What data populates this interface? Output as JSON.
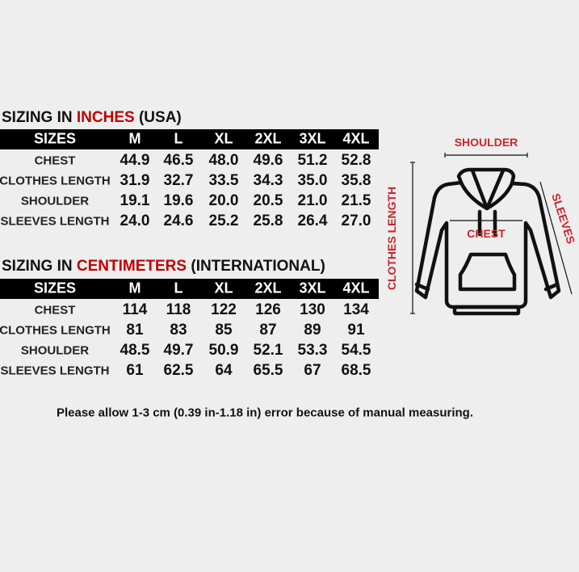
{
  "inches": {
    "title_prefix": "SIZING IN ",
    "title_highlight": "INCHES",
    "title_suffix": " (USA)",
    "header": [
      "SIZES",
      "M",
      "L",
      "XL",
      "2XL",
      "3XL",
      "4XL"
    ],
    "rows": [
      {
        "label": "CHEST",
        "values": [
          "44.9",
          "46.5",
          "48.0",
          "49.6",
          "51.2",
          "52.8"
        ]
      },
      {
        "label": "CLOTHES LENGTH",
        "values": [
          "31.9",
          "32.7",
          "33.5",
          "34.3",
          "35.0",
          "35.8"
        ]
      },
      {
        "label": "SHOULDER",
        "values": [
          "19.1",
          "19.6",
          "20.0",
          "20.5",
          "21.0",
          "21.5"
        ]
      },
      {
        "label": "SLEEVES LENGTH",
        "values": [
          "24.0",
          "24.6",
          "25.2",
          "25.8",
          "26.4",
          "27.0"
        ]
      }
    ]
  },
  "centimeters": {
    "title_prefix": "SIZING IN ",
    "title_highlight": "CENTIMETERS",
    "title_suffix": " (INTERNATIONAL)",
    "header": [
      "SIZES",
      "M",
      "L",
      "XL",
      "2XL",
      "3XL",
      "4XL"
    ],
    "rows": [
      {
        "label": "CHEST",
        "values": [
          "114",
          "118",
          "122",
          "126",
          "130",
          "134"
        ]
      },
      {
        "label": "CLOTHES LENGTH",
        "values": [
          "81",
          "83",
          "85",
          "87",
          "89",
          "91"
        ]
      },
      {
        "label": "SHOULDER",
        "values": [
          "48.5",
          "49.7",
          "50.9",
          "52.1",
          "53.3",
          "54.5"
        ]
      },
      {
        "label": "SLEEVES LENGTH",
        "values": [
          "61",
          "62.5",
          "64",
          "65.5",
          "67",
          "68.5"
        ]
      }
    ]
  },
  "diagram": {
    "shoulder": "SHOULDER",
    "chest": "CHEST",
    "clothes_length": "CLOTHES LENGTH",
    "sleeves": "SLEEVES"
  },
  "note": "Please allow 1-3 cm (0.39 in-1.18 in) error because of manual measuring.",
  "colors": {
    "highlight": "#c00000",
    "diagram_label": "#c8262b",
    "header_bg": "#000000"
  }
}
